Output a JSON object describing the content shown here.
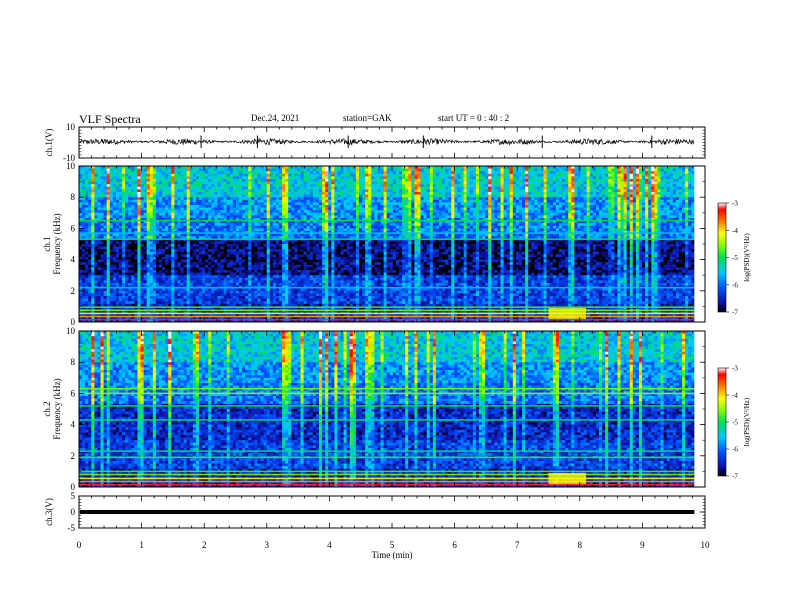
{
  "header": {
    "title": "VLF Spectra",
    "date": "Dec.24, 2021",
    "station": "station=GAK",
    "start_ut": "start  UT =  0 : 40 : 2"
  },
  "chart_data": [
    {
      "type": "line",
      "panel": "ch.1 waveform",
      "ylabel": "ch.1(V)",
      "yticks": [
        "10",
        "-10"
      ],
      "ylim": [
        -10,
        10
      ],
      "x_range_min": [
        0,
        9.83
      ],
      "trace_level_v": 0.5,
      "trace_amplitude_v": 2.5,
      "color": "#000000"
    },
    {
      "type": "heatmap",
      "panel": "ch.1 spectrogram",
      "ylabel": "ch.1\nFrequency  (kHz)",
      "yticks": [
        "0",
        "2",
        "4",
        "6",
        "8",
        "10"
      ],
      "ylim": [
        0,
        10
      ],
      "x_range_min": [
        0,
        9.83
      ],
      "colorbar": {
        "label": "log(PSD)(V²/Hz)",
        "ticks": [
          "-3",
          "-4",
          "-5",
          "-6",
          "-7"
        ],
        "range": [
          -7,
          -3
        ]
      }
    },
    {
      "type": "heatmap",
      "panel": "ch.2 spectrogram",
      "ylabel": "ch.2\nFrequency  (kHz)",
      "yticks": [
        "0",
        "2",
        "4",
        "6",
        "8",
        "10"
      ],
      "ylim": [
        0,
        10
      ],
      "x_range_min": [
        0,
        9.83
      ],
      "colorbar": {
        "label": "log(PSD)(V²/Hz)",
        "ticks": [
          "-3",
          "-4",
          "-5",
          "-6",
          "-7"
        ],
        "range": [
          -7,
          -3
        ]
      }
    },
    {
      "type": "line",
      "panel": "ch.3 waveform",
      "ylabel": "ch.3(V)",
      "yticks": [
        "5",
        "0",
        "-5"
      ],
      "ylim": [
        -5,
        5
      ],
      "x_range_min": [
        0,
        9.83
      ],
      "trace_level_v": 0,
      "color": "#000000"
    }
  ],
  "xaxis": {
    "label": "Time  (min)",
    "ticks": [
      "0",
      "1",
      "2",
      "3",
      "4",
      "5",
      "6",
      "7",
      "8",
      "9",
      "10"
    ],
    "xlim": [
      0,
      10
    ]
  }
}
